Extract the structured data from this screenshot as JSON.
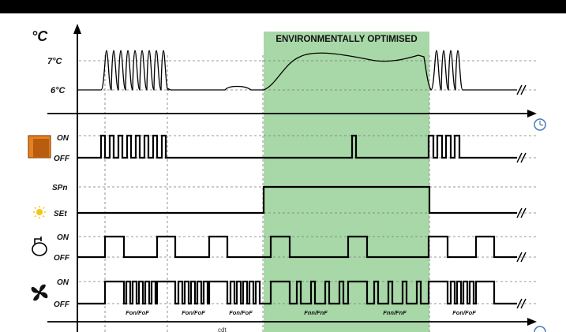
{
  "header": {
    "text": ""
  },
  "temperature": {
    "unit": "°C",
    "high": "7°C",
    "low": "6°C"
  },
  "zone": {
    "label": "ENVIRONMENTALLY OPTIMISED",
    "color": "#a8d8a8"
  },
  "rows": {
    "door": {
      "on": "ON",
      "off": "OFF",
      "icon": "door-icon"
    },
    "setpoint": {
      "night": "SPn",
      "day": "SEt",
      "night_icon": "moon-icon",
      "day_icon": "sun-icon"
    },
    "compressor": {
      "on": "ON",
      "off": "OFF",
      "icon": "compressor-icon"
    },
    "fan": {
      "on": "ON",
      "off": "OFF",
      "icon": "fan-icon"
    }
  },
  "fan_labels": [
    "Fon/FoF",
    "Fon/FoF",
    "Fon/FoF",
    "Fnn/FnF",
    "Fnn/FnF",
    "Fon/FoF"
  ],
  "time_label": "cdt",
  "clock_icon": "clock-icon"
}
